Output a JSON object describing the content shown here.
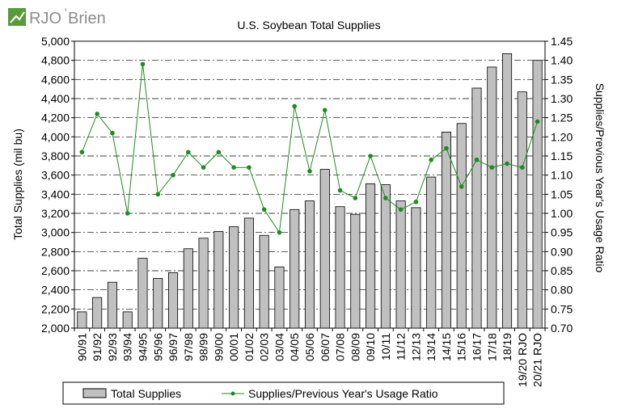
{
  "brand": {
    "name_primary": "RJO",
    "name_secondary": "Brien",
    "apostrophe": "'",
    "colors": {
      "green": "#5a9a3c",
      "gray": "#8c8c8c"
    }
  },
  "chart_data": {
    "type": "bar+line",
    "title": "U.S. Soybean Total Supplies",
    "ylabel_left": "Total Supplies  (mil bu)",
    "ylabel_right": "Supplies/Previous Year's Usage Ratio",
    "categories": [
      "90/91",
      "91/92",
      "92/93",
      "93/94",
      "94/95",
      "95/96",
      "96/97",
      "97/98",
      "98/99",
      "99/00",
      "00/01",
      "01/02",
      "02/03",
      "03/04",
      "04/05",
      "05/06",
      "06/07",
      "07/08",
      "08/09",
      "09/10",
      "10/11",
      "11/12",
      "12/13",
      "13/14",
      "14/15",
      "15/16",
      "16/17",
      "17/18",
      "18/19",
      "19/20 RJO",
      "20/21 RJO"
    ],
    "ylim_left": [
      2000,
      5000
    ],
    "ylim_right": [
      0.7,
      1.45
    ],
    "yticks_left": [
      "2,000",
      "2,200",
      "2,400",
      "2,600",
      "2,800",
      "3,000",
      "3,200",
      "3,400",
      "3,600",
      "3,800",
      "4,000",
      "4,200",
      "4,400",
      "4,600",
      "4,800",
      "5,000"
    ],
    "yticks_right": [
      "0.70",
      "0.75",
      "0.80",
      "0.85",
      "0.90",
      "0.95",
      "1.00",
      "1.05",
      "1.10",
      "1.15",
      "1.20",
      "1.25",
      "1.30",
      "1.35",
      "1.40",
      "1.45"
    ],
    "series": [
      {
        "name": "Total Supplies",
        "type": "bar",
        "axis": "left",
        "color": "#c0c0c0",
        "values": [
          2170,
          2320,
          2480,
          2170,
          2730,
          2520,
          2580,
          2830,
          2940,
          3010,
          3060,
          3150,
          2970,
          2640,
          3240,
          3330,
          3660,
          3270,
          3190,
          3510,
          3500,
          3330,
          3260,
          3580,
          4050,
          4140,
          4510,
          4730,
          4870,
          4470,
          4800
        ]
      },
      {
        "name": "Supplies/Previous Year's Usage Ratio",
        "type": "line",
        "axis": "right",
        "color": "#1e8c1e",
        "values": [
          1.16,
          1.26,
          1.21,
          1.0,
          1.39,
          1.05,
          1.1,
          1.16,
          1.12,
          1.16,
          1.12,
          1.12,
          1.01,
          0.95,
          1.28,
          1.11,
          1.27,
          1.06,
          1.04,
          1.15,
          1.04,
          1.01,
          1.03,
          1.14,
          1.17,
          1.07,
          1.14,
          1.12,
          1.13,
          1.12,
          1.24
        ]
      }
    ],
    "grid": "horizontal dashed",
    "legend_position": "bottom"
  }
}
